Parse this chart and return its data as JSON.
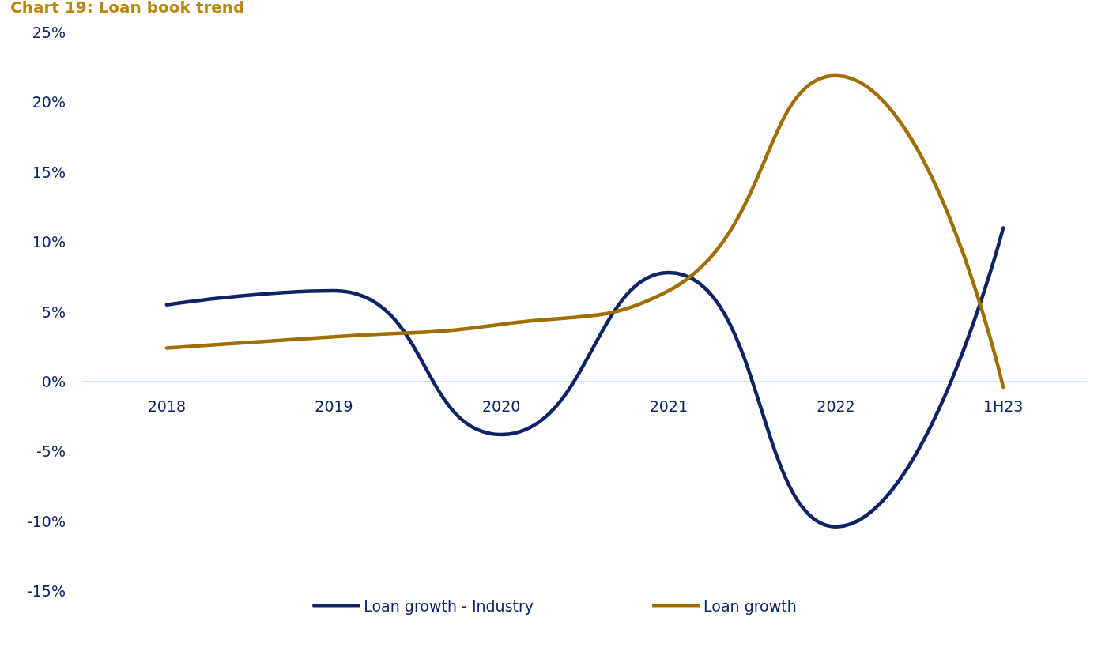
{
  "chart_data": {
    "type": "line",
    "title": "Chart 19: Loan book trend",
    "categories": [
      "2018",
      "2019",
      "2020",
      "2021",
      "2022",
      "1H23"
    ],
    "series": [
      {
        "name": "Loan growth - Industry",
        "color": "#0d2366",
        "values": [
          5.5,
          6.5,
          -3.8,
          7.8,
          -10.4,
          11.0
        ]
      },
      {
        "name": "Loan growth",
        "color": "#a06e00",
        "values": [
          2.4,
          3.2,
          4.1,
          6.5,
          21.9,
          -0.4
        ]
      }
    ],
    "ylim": [
      -15,
      25
    ],
    "yticks": [
      {
        "value": -15,
        "label": "-15%"
      },
      {
        "value": -10,
        "label": "-10%"
      },
      {
        "value": -5,
        "label": "-5%"
      },
      {
        "value": 0,
        "label": "0%"
      },
      {
        "value": 5,
        "label": "5%"
      },
      {
        "value": 10,
        "label": "10%"
      },
      {
        "value": 15,
        "label": "15%"
      },
      {
        "value": 20,
        "label": "20%"
      },
      {
        "value": 25,
        "label": "25%"
      }
    ],
    "grid": false,
    "legend": "bottom",
    "marker": "none",
    "line_style": "solid"
  }
}
